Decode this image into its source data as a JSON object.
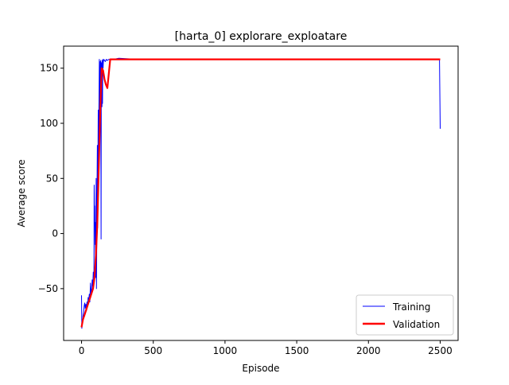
{
  "chart_data": {
    "type": "line",
    "title": "[harta_0] explorare_exploatare",
    "xlabel": "Episode",
    "ylabel": "Average score",
    "xlim": [
      -125,
      2625
    ],
    "ylim": [
      -97,
      170
    ],
    "xticks": [
      0,
      500,
      1000,
      1500,
      2000,
      2500
    ],
    "yticks": [
      -50,
      0,
      50,
      100,
      150
    ],
    "grid": false,
    "legend": {
      "position": "lower-right",
      "entries": [
        "Training",
        "Validation"
      ]
    },
    "series": [
      {
        "name": "Training",
        "color": "#0000ff",
        "stroke": "thin",
        "x": [
          0,
          2,
          4,
          6,
          8,
          10,
          14,
          18,
          22,
          26,
          30,
          34,
          38,
          42,
          46,
          50,
          54,
          58,
          62,
          66,
          70,
          74,
          78,
          82,
          86,
          88,
          90,
          92,
          94,
          96,
          98,
          100,
          102,
          104,
          106,
          108,
          110,
          112,
          114,
          116,
          118,
          120,
          122,
          124,
          126,
          128,
          130,
          132,
          134,
          136,
          138,
          140,
          142,
          144,
          146,
          148,
          150,
          152,
          156,
          160,
          166,
          172,
          180,
          190,
          200,
          220,
          260,
          400,
          800,
          1200,
          1600,
          2000,
          2400,
          2490,
          2495,
          2500
        ],
        "values": [
          -56,
          -86,
          -82,
          -78,
          -80,
          -75,
          -72,
          -66,
          -63,
          -68,
          -64,
          -70,
          -62,
          -66,
          -58,
          -60,
          -55,
          -62,
          -45,
          -55,
          -50,
          -42,
          -48,
          -35,
          -40,
          44,
          20,
          25,
          -10,
          10,
          -40,
          0,
          50,
          -50,
          -5,
          42,
          80,
          5,
          50,
          112,
          60,
          100,
          120,
          158,
          80,
          130,
          156,
          140,
          157,
          -5,
          155,
          150,
          115,
          157,
          118,
          158,
          150,
          156,
          158,
          157,
          156,
          158,
          157,
          158,
          158,
          158,
          159,
          158,
          158,
          158,
          158,
          158,
          158,
          158,
          158,
          95
        ]
      },
      {
        "name": "Validation",
        "color": "#ff0000",
        "stroke": "thick",
        "x": [
          0,
          10,
          20,
          30,
          40,
          50,
          60,
          70,
          80,
          90,
          100,
          110,
          120,
          130,
          140,
          150,
          160,
          170,
          180,
          190,
          200,
          250,
          300,
          500,
          1000,
          1500,
          2000,
          2500
        ],
        "values": [
          -85,
          -78,
          -74,
          -70,
          -66,
          -62,
          -58,
          -54,
          -50,
          -40,
          -20,
          10,
          60,
          110,
          150,
          148,
          140,
          135,
          132,
          145,
          158,
          158,
          158,
          158,
          158,
          158,
          158,
          158
        ]
      }
    ]
  }
}
